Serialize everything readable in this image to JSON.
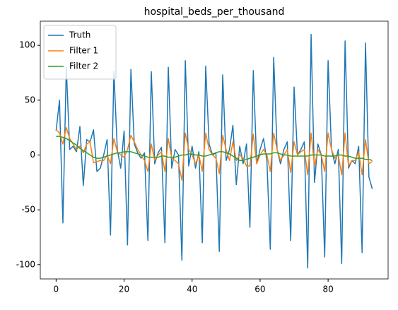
{
  "chart_data": {
    "type": "line",
    "title": "hospital_beds_per_thousand",
    "x": [
      0,
      1,
      2,
      3,
      4,
      5,
      6,
      7,
      8,
      9,
      10,
      11,
      12,
      13,
      14,
      15,
      16,
      17,
      18,
      19,
      20,
      21,
      22,
      23,
      24,
      25,
      26,
      27,
      28,
      29,
      30,
      31,
      32,
      33,
      34,
      35,
      36,
      37,
      38,
      39,
      40,
      41,
      42,
      43,
      44,
      45,
      46,
      47,
      48,
      49,
      50,
      51,
      52,
      53,
      54,
      55,
      56,
      57,
      58,
      59,
      60,
      61,
      62,
      63,
      64,
      65,
      66,
      67,
      68,
      69,
      70,
      71,
      72,
      73,
      74,
      75,
      76,
      77,
      78,
      79,
      80,
      81,
      82,
      83,
      84,
      85,
      86,
      87,
      88,
      89,
      90,
      91,
      92,
      93
    ],
    "series": [
      {
        "name": "Truth",
        "color": "#1f77b4",
        "values": [
          22,
          50,
          -62,
          80,
          5,
          8,
          3,
          26,
          -28,
          14,
          12,
          23,
          -15,
          -12,
          0,
          14,
          -73,
          76,
          5,
          -12,
          22,
          -82,
          78,
          10,
          2,
          -3,
          2,
          -78,
          76,
          -8,
          2,
          7,
          -80,
          80,
          -12,
          5,
          0,
          -96,
          86,
          -10,
          8,
          -12,
          3,
          -80,
          81,
          10,
          0,
          2,
          -88,
          73,
          -5,
          5,
          27,
          -27,
          8,
          -8,
          10,
          -66,
          77,
          -8,
          5,
          15,
          -5,
          -86,
          89,
          5,
          -8,
          5,
          12,
          -78,
          62,
          0,
          5,
          12,
          -103,
          110,
          -25,
          10,
          0,
          -93,
          86,
          5,
          -8,
          5,
          -99,
          104,
          -12,
          -5,
          -8,
          8,
          -89,
          102,
          -20,
          -31
        ]
      },
      {
        "name": "Filter 1",
        "color": "#ff7f0e",
        "values": [
          23,
          20,
          10,
          25,
          15,
          10,
          5,
          8,
          2,
          10,
          12,
          -7,
          -6,
          -5,
          -5,
          0,
          -8,
          15,
          3,
          0,
          -2,
          5,
          18,
          12,
          5,
          0,
          -5,
          -15,
          10,
          -5,
          0,
          3,
          -15,
          15,
          -3,
          -5,
          -8,
          -23,
          20,
          5,
          0,
          -8,
          0,
          -15,
          20,
          5,
          0,
          -3,
          -17,
          18,
          5,
          -5,
          12,
          -5,
          0,
          -3,
          -10,
          -10,
          19,
          -8,
          0,
          5,
          0,
          -15,
          20,
          5,
          -5,
          0,
          5,
          -16,
          12,
          0,
          3,
          5,
          -18,
          20,
          -10,
          5,
          0,
          -15,
          20,
          5,
          -3,
          0,
          -18,
          20,
          -10,
          -5,
          -5,
          3,
          -18,
          14,
          -8,
          -6
        ]
      },
      {
        "name": "Filter 2",
        "color": "#2ca02c",
        "values": [
          17,
          17,
          16,
          15,
          13,
          11,
          9,
          6,
          4,
          2,
          0,
          -2,
          -3,
          -3,
          -2,
          -1,
          0,
          1,
          2,
          2,
          3,
          3,
          3,
          2,
          1,
          0,
          -1,
          -2,
          -2,
          -2,
          -2,
          -1,
          -1,
          -2,
          -2,
          -2,
          -1,
          0,
          0,
          1,
          1,
          0,
          0,
          -1,
          -1,
          0,
          1,
          2,
          3,
          3,
          2,
          1,
          -1,
          -3,
          -5,
          -5,
          -4,
          -3,
          -2,
          -1,
          0,
          1,
          1,
          1,
          2,
          2,
          1,
          0,
          0,
          -1,
          -1,
          -1,
          -1,
          -1,
          -1,
          0,
          0,
          0,
          0,
          -1,
          -1,
          -1,
          -1,
          0,
          0,
          -1,
          -1,
          -2,
          -3,
          -3,
          -3,
          -4,
          -4,
          -5
        ]
      }
    ],
    "xlim": [
      -4.65,
      97.65
    ],
    "xticks": [
      0,
      20,
      40,
      60,
      80
    ],
    "ylim": [
      -113,
      122
    ],
    "yticks": [
      -100,
      -50,
      0,
      50,
      100
    ],
    "legend": "upper left",
    "grid": false
  }
}
